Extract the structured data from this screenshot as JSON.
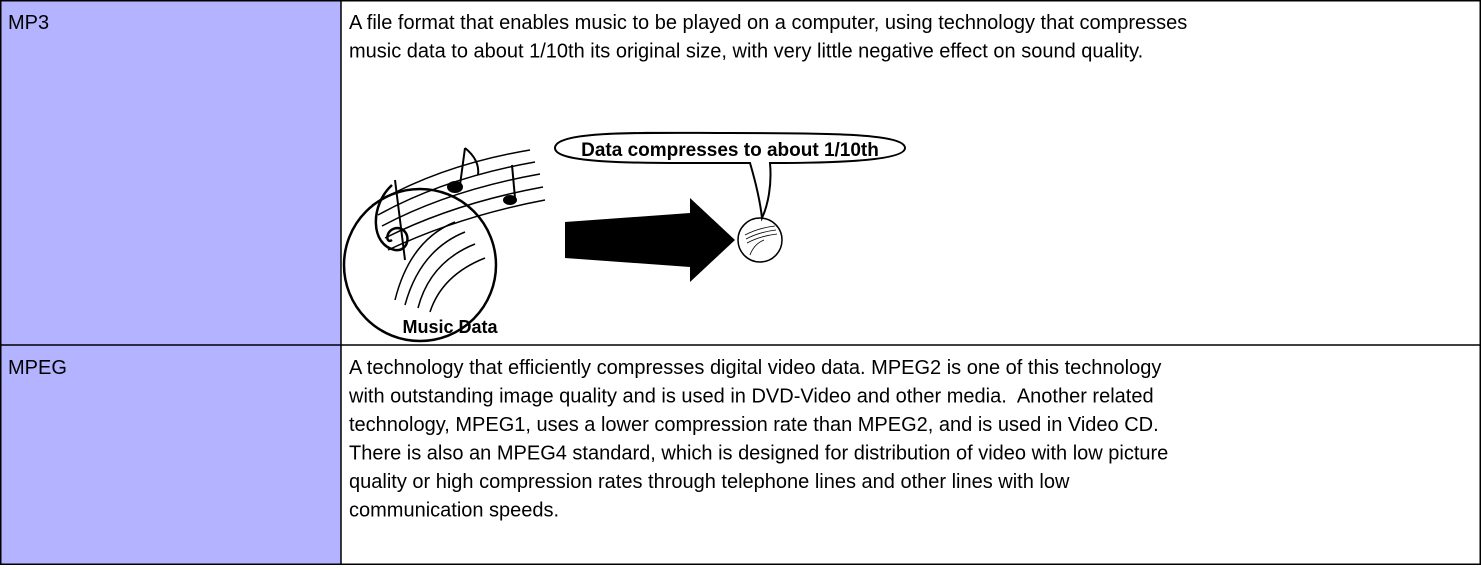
{
  "table": {
    "rows": [
      {
        "term": "MP3",
        "description": [
          "A file format that enables music to be played on a computer, using technology that compresses",
          "music data to about 1/10th its original size, with very little negative effect on sound quality."
        ],
        "illustration": {
          "callout": "Data compresses to about 1/10th",
          "caption": "Music Data"
        }
      },
      {
        "term": "MPEG",
        "description": [
          "A technology that efficiently compresses digital video data. MPEG2 is one of this technology",
          "with outstanding image quality and is used in DVD-Video and other media.  Another related",
          "technology, MPEG1, uses a lower compression rate than MPEG2, and is used in Video CD.",
          "There is also an MPEG4 standard, which is designed for distribution of video with low picture",
          "quality or high compression rates through telephone lines and other lines with low",
          "communication speeds."
        ]
      }
    ]
  }
}
